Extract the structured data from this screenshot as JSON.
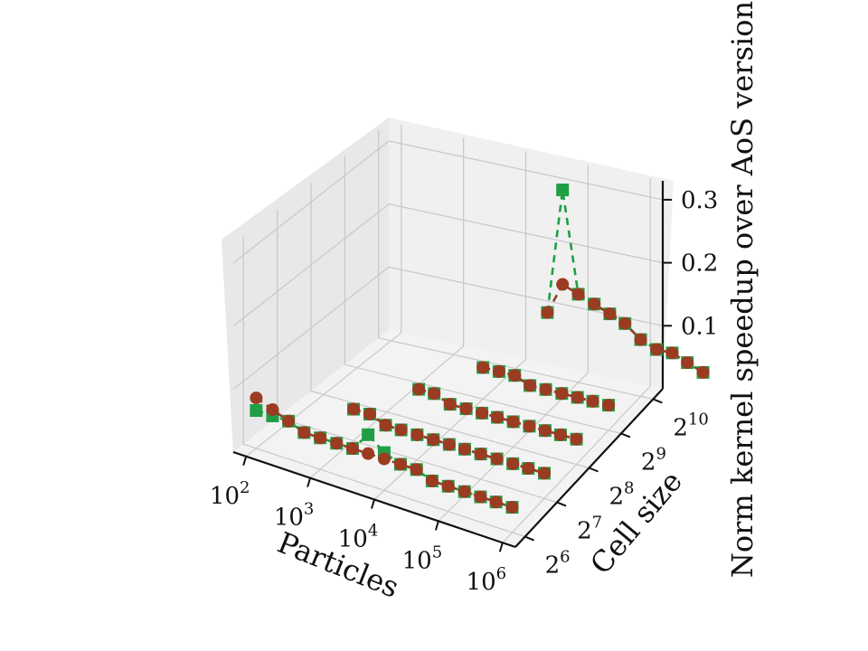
{
  "chart_data": {
    "type": "scatter3d",
    "title": "",
    "xlabel": "Particles",
    "ylabel": "Cell size",
    "zlabel": "Norm kernel speedup over AoS version",
    "x_ticks": [
      "10^2",
      "10^3",
      "10^4",
      "10^5",
      "10^6"
    ],
    "y_ticks": [
      "2^6",
      "2^7",
      "2^8",
      "2^9",
      "2^10"
    ],
    "z_ticks": [
      "0.1",
      "0.2",
      "0.3"
    ],
    "x_scale": "log10",
    "y_scale": "log2",
    "x_range": [
      1.8,
      6.2
    ],
    "y_range": [
      5.7,
      10.3
    ],
    "z_range": [
      0.0,
      0.33
    ],
    "grid": true,
    "colors": {
      "series_a": "#1f9e45",
      "series_b": "#9a3b22"
    },
    "series": [
      {
        "marker": "square",
        "linestyle": "dashed",
        "color": "#1f9e45",
        "rows": [
          {
            "cell_size": "2^6",
            "particles": [
              100,
              180,
              320,
              560,
              1000,
              1800,
              3200,
              5600,
              10000,
              18000,
              32000,
              56000,
              100000,
              180000,
              320000,
              560000,
              1000000
            ],
            "values": [
              0.06,
              0.06,
              0.06,
              0.05,
              0.05,
              0.05,
              0.05,
              0.08,
              0.06,
              0.05,
              0.05,
              0.04,
              0.04,
              0.04,
              0.04,
              0.04,
              0.04
            ]
          },
          {
            "cell_size": "2^7",
            "particles": [
              1000,
              1800,
              3200,
              5600,
              10000,
              18000,
              32000,
              56000,
              100000,
              180000,
              320000,
              560000,
              1000000
            ],
            "values": [
              0.05,
              0.05,
              0.04,
              0.04,
              0.04,
              0.04,
              0.04,
              0.04,
              0.04,
              0.04,
              0.04,
              0.04,
              0.04
            ]
          },
          {
            "cell_size": "2^8",
            "particles": [
              3200,
              5600,
              10000,
              18000,
              32000,
              56000,
              100000,
              180000,
              320000,
              560000,
              1000000
            ],
            "values": [
              0.05,
              0.05,
              0.04,
              0.04,
              0.04,
              0.04,
              0.04,
              0.04,
              0.04,
              0.04,
              0.04
            ]
          },
          {
            "cell_size": "2^9",
            "particles": [
              10000,
              18000,
              32000,
              56000,
              100000,
              180000,
              320000,
              560000,
              1000000
            ],
            "values": [
              0.05,
              0.05,
              0.05,
              0.04,
              0.04,
              0.04,
              0.04,
              0.04,
              0.04
            ]
          },
          {
            "cell_size": "2^10",
            "particles": [
              32000,
              56000,
              100000,
              180000,
              320000,
              560000,
              1000000,
              1800000,
              3200000,
              5600000,
              10000000
            ],
            "values": [
              0.1,
              0.3,
              0.14,
              0.13,
              0.12,
              0.11,
              0.09,
              0.08,
              0.08,
              0.07,
              0.06
            ]
          }
        ]
      },
      {
        "marker": "circle",
        "linestyle": "dashed",
        "color": "#9a3b22",
        "rows": [
          {
            "cell_size": "2^6",
            "particles": [
              100,
              180,
              320,
              560,
              1000,
              1800,
              3200,
              5600,
              10000,
              18000,
              32000,
              56000,
              100000,
              180000,
              320000,
              560000,
              1000000
            ],
            "values": [
              0.08,
              0.07,
              0.06,
              0.05,
              0.05,
              0.05,
              0.05,
              0.05,
              0.05,
              0.05,
              0.05,
              0.04,
              0.04,
              0.04,
              0.04,
              0.04,
              0.04
            ]
          },
          {
            "cell_size": "2^7",
            "particles": [
              1000,
              1800,
              3200,
              5600,
              10000,
              18000,
              32000,
              56000,
              100000,
              180000,
              320000,
              560000,
              1000000
            ],
            "values": [
              0.05,
              0.05,
              0.04,
              0.04,
              0.04,
              0.04,
              0.04,
              0.04,
              0.04,
              0.04,
              0.04,
              0.04,
              0.04
            ]
          },
          {
            "cell_size": "2^8",
            "particles": [
              3200,
              5600,
              10000,
              18000,
              32000,
              56000,
              100000,
              180000,
              320000,
              560000,
              1000000
            ],
            "values": [
              0.05,
              0.05,
              0.04,
              0.04,
              0.04,
              0.04,
              0.04,
              0.04,
              0.04,
              0.04,
              0.04
            ]
          },
          {
            "cell_size": "2^9",
            "particles": [
              10000,
              18000,
              32000,
              56000,
              100000,
              180000,
              320000,
              560000,
              1000000
            ],
            "values": [
              0.05,
              0.05,
              0.05,
              0.04,
              0.04,
              0.04,
              0.04,
              0.04,
              0.04
            ]
          },
          {
            "cell_size": "2^10",
            "particles": [
              32000,
              56000,
              100000,
              180000,
              320000,
              560000,
              1000000,
              1800000,
              3200000,
              5600000,
              10000000
            ],
            "values": [
              0.1,
              0.15,
              0.14,
              0.13,
              0.12,
              0.11,
              0.09,
              0.08,
              0.08,
              0.07,
              0.06
            ]
          }
        ]
      }
    ]
  }
}
